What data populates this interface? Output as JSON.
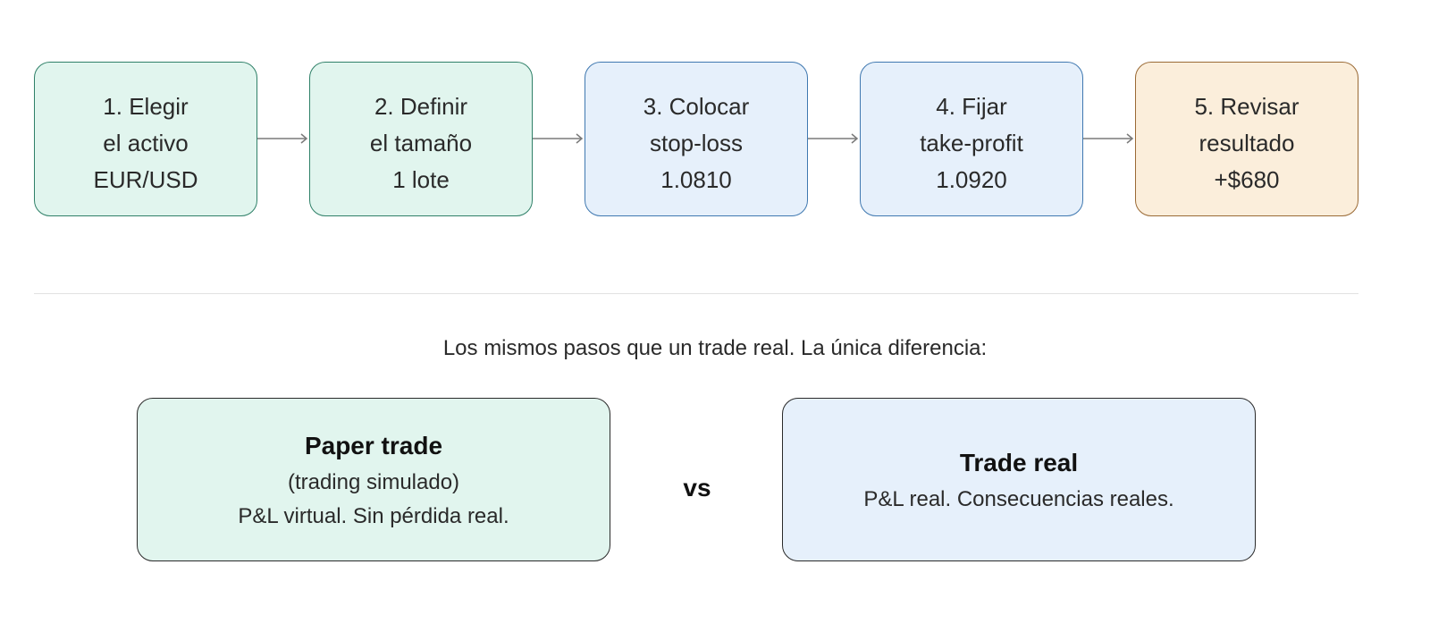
{
  "steps": [
    {
      "lines": [
        "1. Elegir",
        "el activo",
        "EUR/USD"
      ],
      "color": "green"
    },
    {
      "lines": [
        "2. Definir",
        "el tamaño",
        "1 lote"
      ],
      "color": "green"
    },
    {
      "lines": [
        "3. Colocar",
        "stop-loss",
        "1.0810"
      ],
      "color": "blue"
    },
    {
      "lines": [
        "4. Fijar",
        "take-profit",
        "1.0920"
      ],
      "color": "blue"
    },
    {
      "lines": [
        "5. Revisar",
        "resultado",
        "+$680"
      ],
      "color": "orange"
    }
  ],
  "caption": "Los mismos pasos que un trade real. La única diferencia:",
  "paper": {
    "title": "Paper trade",
    "subtitle": "(trading simulado)",
    "text": "P&L virtual. Sin pérdida real."
  },
  "vs": "vs",
  "real": {
    "title": "Trade real",
    "text": "P&L real. Consecuencias reales."
  },
  "colors": {
    "green_fill": "#e1f5ee",
    "blue_fill": "#e6f0fb",
    "orange_fill": "#fbeedb"
  }
}
